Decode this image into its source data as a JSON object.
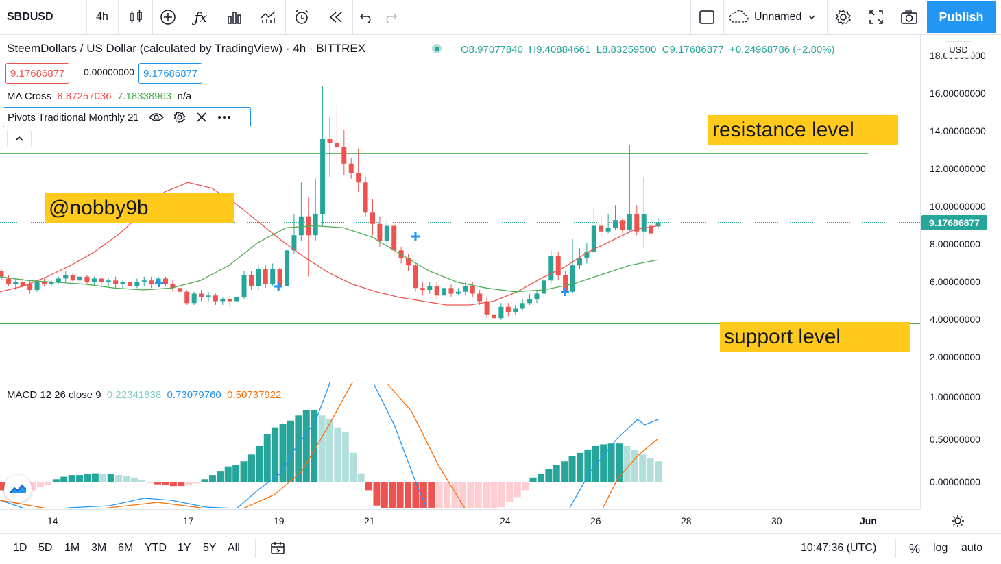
{
  "toolbar": {
    "symbol": "SBDUSD",
    "interval": "4h",
    "layout_name": "Unnamed",
    "publish_label": "Publish"
  },
  "legend": {
    "title": "SteemDollars / US Dollar (calculated by TradingView) · 4h · BITTREX",
    "open": "O8.97077840",
    "high": "H9.40884661",
    "low": "L8.83259500",
    "close": "C9.17686877",
    "change": "+0.24968786 (+2.80%)",
    "bid": "9.17686877",
    "spread": "0.00000000",
    "ask": "9.17686877",
    "ma_cross_label": "MA Cross",
    "ma_cross_v1": "8.87257036",
    "ma_cross_v2": "7.18338963",
    "ma_cross_v3": "n/a",
    "pivots_label": "Pivots Traditional Monthly 21",
    "macd_label": "MACD 12 26 close 9",
    "macd_v1": "0.22341838",
    "macd_v2": "0.73079760",
    "macd_v3": "0.50737922"
  },
  "annotations": {
    "username": "@nobby9b",
    "resistance": "resistance level",
    "support": "support level"
  },
  "price_axis": {
    "currency": "USD",
    "current_price": "9.17686877",
    "labels": [
      "18.00000000",
      "16.00000000",
      "14.00000000",
      "12.00000000",
      "10.00000000",
      "8.00000000",
      "6.00000000",
      "4.00000000",
      "2.00000000"
    ],
    "macd_labels": [
      "1.00000000",
      "0.50000000",
      "0.00000000"
    ]
  },
  "time_axis": {
    "labels": [
      "14",
      "17",
      "19",
      "21",
      "24",
      "26",
      "28",
      "30",
      "Jun"
    ]
  },
  "bottombar": {
    "ranges": [
      "1D",
      "5D",
      "1M",
      "3M",
      "6M",
      "YTD",
      "1Y",
      "5Y",
      "All"
    ],
    "clock": "10:47:36 (UTC)",
    "percent": "%",
    "log": "log",
    "auto": "auto"
  },
  "colors": {
    "up": "#26a69a",
    "down": "#ef5350",
    "ma_fast": "#ef5350",
    "ma_slow": "#4caf50",
    "macd": "#2196f3",
    "signal": "#ff6d00",
    "accent": "#2196f3",
    "annotation": "#ffca1c"
  },
  "chart_data": {
    "type": "candlestick",
    "price_range": [
      1.3,
      19.5
    ],
    "resistance": 12.85,
    "support": 3.8,
    "candles": [
      [
        6.6,
        6.3,
        6.7,
        6.1
      ],
      [
        6.2,
        5.9,
        6.4,
        5.8
      ],
      [
        5.9,
        6.0,
        6.2,
        5.6
      ],
      [
        6.0,
        5.8,
        6.3,
        5.7
      ],
      [
        5.9,
        5.6,
        6.1,
        5.4
      ],
      [
        5.6,
        6.0,
        6.1,
        5.5
      ],
      [
        6.0,
        5.9,
        6.2,
        5.8
      ],
      [
        5.9,
        6.0,
        6.1,
        5.8
      ],
      [
        6.0,
        6.2,
        6.3,
        5.9
      ],
      [
        6.2,
        6.4,
        6.6,
        6.0
      ],
      [
        6.4,
        6.1,
        6.5,
        6.0
      ],
      [
        6.1,
        6.3,
        6.4,
        5.9
      ],
      [
        6.3,
        6.0,
        6.4,
        5.9
      ],
      [
        6.0,
        6.2,
        6.3,
        5.8
      ],
      [
        6.2,
        6.0,
        6.3,
        5.8
      ],
      [
        6.0,
        6.1,
        6.2,
        5.8
      ],
      [
        6.1,
        5.9,
        6.3,
        5.7
      ],
      [
        5.9,
        6.0,
        6.1,
        5.7
      ],
      [
        6.0,
        5.8,
        6.1,
        5.6
      ],
      [
        5.8,
        6.0,
        6.2,
        5.7
      ],
      [
        6.0,
        6.1,
        6.3,
        5.8
      ],
      [
        6.1,
        5.9,
        6.3,
        5.7
      ],
      [
        5.9,
        6.2,
        6.3,
        5.8
      ],
      [
        6.2,
        5.9,
        6.3,
        5.8
      ],
      [
        5.9,
        5.7,
        6.1,
        5.5
      ],
      [
        5.7,
        5.5,
        5.9,
        5.3
      ],
      [
        5.5,
        4.9,
        5.6,
        4.8
      ],
      [
        4.9,
        5.4,
        5.5,
        4.8
      ],
      [
        5.4,
        5.2,
        5.6,
        5.0
      ],
      [
        5.2,
        5.3,
        5.5,
        5.0
      ],
      [
        5.3,
        5.0,
        5.4,
        4.8
      ],
      [
        5.0,
        5.1,
        5.2,
        4.8
      ],
      [
        5.1,
        5.0,
        5.3,
        4.7
      ],
      [
        5.0,
        5.2,
        5.3,
        4.9
      ],
      [
        5.2,
        6.4,
        6.6,
        5.1
      ],
      [
        6.4,
        5.8,
        6.6,
        5.6
      ],
      [
        5.8,
        6.7,
        6.9,
        5.6
      ],
      [
        6.7,
        5.9,
        6.9,
        5.7
      ],
      [
        5.9,
        6.7,
        7.0,
        5.8
      ],
      [
        6.7,
        5.8,
        6.8,
        5.6
      ],
      [
        5.8,
        7.7,
        8.0,
        5.7
      ],
      [
        7.7,
        8.5,
        9.6,
        7.5
      ],
      [
        8.5,
        9.5,
        11.3,
        8.2
      ],
      [
        9.5,
        8.5,
        10.5,
        6.3
      ],
      [
        8.5,
        9.6,
        11.5,
        8.2
      ],
      [
        9.6,
        13.6,
        16.4,
        9.0
      ],
      [
        13.6,
        13.4,
        14.8,
        11.6
      ],
      [
        13.4,
        13.2,
        15.4,
        12.3
      ],
      [
        13.2,
        12.3,
        14.1,
        11.7
      ],
      [
        12.3,
        11.8,
        12.6,
        11.5
      ],
      [
        11.8,
        11.3,
        13.1,
        10.8
      ],
      [
        11.3,
        9.7,
        11.6,
        9.5
      ],
      [
        9.7,
        9.1,
        10.4,
        8.5
      ],
      [
        9.1,
        8.2,
        9.5,
        7.9
      ],
      [
        8.2,
        9.0,
        9.3,
        8.0
      ],
      [
        9.0,
        7.7,
        9.2,
        7.4
      ],
      [
        7.7,
        7.3,
        7.9,
        7.0
      ],
      [
        7.3,
        6.9,
        7.5,
        6.6
      ],
      [
        6.9,
        5.7,
        7.0,
        5.5
      ],
      [
        5.7,
        5.6,
        6.0,
        5.3
      ],
      [
        5.6,
        5.8,
        6.0,
        5.4
      ],
      [
        5.8,
        5.3,
        6.0,
        5.1
      ],
      [
        5.3,
        5.7,
        5.9,
        5.2
      ],
      [
        5.7,
        5.4,
        5.9,
        5.2
      ],
      [
        5.4,
        5.5,
        5.7,
        5.3
      ],
      [
        5.5,
        5.8,
        6.0,
        5.3
      ],
      [
        5.8,
        5.4,
        6.0,
        5.2
      ],
      [
        5.4,
        5.0,
        5.6,
        4.8
      ],
      [
        5.0,
        4.3,
        5.2,
        4.1
      ],
      [
        4.3,
        4.1,
        4.6,
        4.0
      ],
      [
        4.1,
        4.7,
        4.9,
        4.0
      ],
      [
        4.7,
        4.4,
        4.9,
        4.2
      ],
      [
        4.4,
        4.6,
        4.8,
        4.3
      ],
      [
        4.6,
        4.9,
        5.1,
        4.5
      ],
      [
        4.9,
        5.1,
        5.4,
        4.8
      ],
      [
        5.1,
        5.4,
        5.6,
        4.9
      ],
      [
        5.4,
        6.1,
        6.3,
        5.3
      ],
      [
        6.1,
        7.4,
        7.7,
        5.9
      ],
      [
        7.4,
        6.4,
        7.6,
        6.1
      ],
      [
        6.4,
        5.5,
        6.6,
        5.3
      ],
      [
        5.5,
        6.9,
        8.3,
        5.4
      ],
      [
        6.9,
        7.3,
        7.8,
        6.7
      ],
      [
        7.3,
        7.6,
        8.1,
        7.0
      ],
      [
        7.6,
        9.0,
        9.9,
        7.5
      ],
      [
        9.0,
        8.7,
        9.5,
        8.4
      ],
      [
        8.7,
        8.9,
        9.6,
        8.6
      ],
      [
        8.9,
        9.3,
        10.1,
        8.8
      ],
      [
        9.3,
        8.8,
        9.4,
        8.6
      ],
      [
        8.8,
        9.6,
        13.3,
        8.7
      ],
      [
        9.6,
        8.7,
        10.1,
        8.5
      ],
      [
        8.7,
        9.6,
        11.6,
        7.8
      ],
      [
        9.0,
        8.6,
        9.4,
        8.4
      ],
      [
        8.97,
        9.18,
        9.41,
        8.83
      ]
    ],
    "ma_fast": [
      5.5,
      5.8,
      6.3,
      6.9,
      7.6,
      8.5,
      9.6,
      10.8,
      11.3,
      11.0,
      10.2,
      9.2,
      8.2,
      7.3,
      6.5,
      5.9,
      5.5,
      5.2,
      5.0,
      4.8,
      4.8,
      5.0,
      5.5,
      6.2,
      6.8,
      7.6,
      8.2,
      8.8,
      9.0
    ],
    "ma_slow": [
      6.3,
      6.1,
      6.0,
      5.9,
      5.7,
      5.6,
      5.7,
      6.1,
      6.9,
      8.1,
      8.9,
      9.0,
      8.9,
      8.4,
      7.5,
      6.6,
      6.0,
      5.7,
      5.5,
      5.6,
      5.9,
      6.4,
      6.9,
      7.2
    ],
    "macd_hist": [
      -0.1,
      -0.12,
      -0.13,
      -0.12,
      -0.1,
      -0.06,
      -0.04,
      0.03,
      0.06,
      0.08,
      0.08,
      0.09,
      0.1,
      0.09,
      0.09,
      0.08,
      0.07,
      0.05,
      0.02,
      -0.01,
      -0.03,
      -0.04,
      -0.05,
      -0.05,
      -0.04,
      -0.02,
      0.03,
      0.08,
      0.12,
      0.18,
      0.2,
      0.24,
      0.32,
      0.42,
      0.56,
      0.64,
      0.68,
      0.72,
      0.78,
      0.84,
      0.84,
      0.78,
      0.74,
      0.64,
      0.58,
      0.34,
      0.1,
      -0.1,
      -0.28,
      -0.36,
      -0.42,
      -0.46,
      -0.48,
      -0.5,
      -0.52,
      -0.52,
      -0.5,
      -0.48,
      -0.46,
      -0.44,
      -0.42,
      -0.4,
      -0.38,
      -0.34,
      -0.3,
      -0.24,
      -0.18,
      -0.1,
      0.05,
      0.09,
      0.15,
      0.2,
      0.24,
      0.3,
      0.34,
      0.38,
      0.42,
      0.44,
      0.45,
      0.45,
      0.42,
      0.38,
      0.32,
      0.28,
      0.24
    ]
  }
}
